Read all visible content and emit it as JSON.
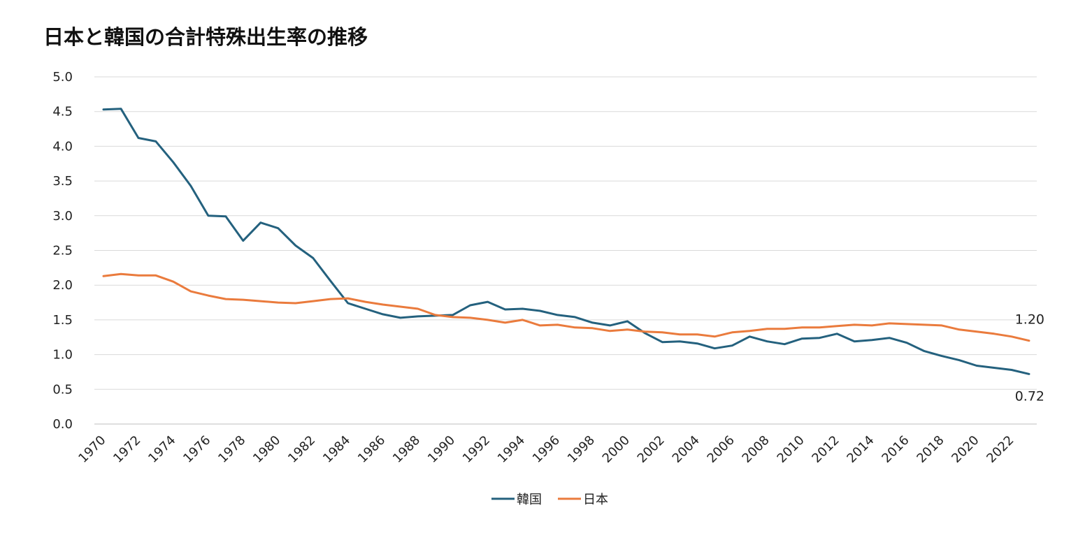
{
  "chart_data": {
    "type": "line",
    "title": "日本と韓国の合計特殊出生率の推移",
    "xlabel": "",
    "ylabel": "",
    "ylim": [
      0,
      5
    ],
    "y_ticks": [
      "0.0",
      "0.5",
      "1.0",
      "1.5",
      "2.0",
      "2.5",
      "3.0",
      "3.5",
      "4.0",
      "4.5",
      "5.0"
    ],
    "x": [
      1970,
      1971,
      1972,
      1973,
      1974,
      1975,
      1976,
      1977,
      1978,
      1979,
      1980,
      1981,
      1982,
      1983,
      1984,
      1985,
      1986,
      1987,
      1988,
      1989,
      1990,
      1991,
      1992,
      1993,
      1994,
      1995,
      1996,
      1997,
      1998,
      1999,
      2000,
      2001,
      2002,
      2003,
      2004,
      2005,
      2006,
      2007,
      2008,
      2009,
      2010,
      2011,
      2012,
      2013,
      2014,
      2015,
      2016,
      2017,
      2018,
      2019,
      2020,
      2021,
      2022,
      2023
    ],
    "x_tick_labels": [
      "1970",
      "1972",
      "1974",
      "1976",
      "1978",
      "1980",
      "1982",
      "1984",
      "1986",
      "1988",
      "1990",
      "1992",
      "1994",
      "1996",
      "1998",
      "2000",
      "2002",
      "2004",
      "2006",
      "2008",
      "2010",
      "2012",
      "2014",
      "2016",
      "2018",
      "2020",
      "2022"
    ],
    "grid": true,
    "legend_position": "bottom",
    "series": [
      {
        "name": "韓国",
        "color": "#24617e",
        "values": [
          4.53,
          4.54,
          4.12,
          4.07,
          3.77,
          3.43,
          3.0,
          2.99,
          2.64,
          2.9,
          2.82,
          2.57,
          2.39,
          2.06,
          1.74,
          1.66,
          1.58,
          1.53,
          1.55,
          1.56,
          1.57,
          1.71,
          1.76,
          1.65,
          1.66,
          1.63,
          1.57,
          1.54,
          1.46,
          1.42,
          1.48,
          1.31,
          1.18,
          1.19,
          1.16,
          1.09,
          1.13,
          1.26,
          1.19,
          1.15,
          1.23,
          1.24,
          1.3,
          1.19,
          1.21,
          1.24,
          1.17,
          1.05,
          0.98,
          0.92,
          0.84,
          0.81,
          0.78,
          0.72
        ]
      },
      {
        "name": "日本",
        "color": "#ea7b3d",
        "values": [
          2.13,
          2.16,
          2.14,
          2.14,
          2.05,
          1.91,
          1.85,
          1.8,
          1.79,
          1.77,
          1.75,
          1.74,
          1.77,
          1.8,
          1.81,
          1.76,
          1.72,
          1.69,
          1.66,
          1.57,
          1.54,
          1.53,
          1.5,
          1.46,
          1.5,
          1.42,
          1.43,
          1.39,
          1.38,
          1.34,
          1.36,
          1.33,
          1.32,
          1.29,
          1.29,
          1.26,
          1.32,
          1.34,
          1.37,
          1.37,
          1.39,
          1.39,
          1.41,
          1.43,
          1.42,
          1.45,
          1.44,
          1.43,
          1.42,
          1.36,
          1.33,
          1.3,
          1.26,
          1.2
        ]
      }
    ],
    "annotations": [
      {
        "text": "1.20",
        "series": "日本"
      },
      {
        "text": "0.72",
        "series": "韓国"
      }
    ]
  }
}
